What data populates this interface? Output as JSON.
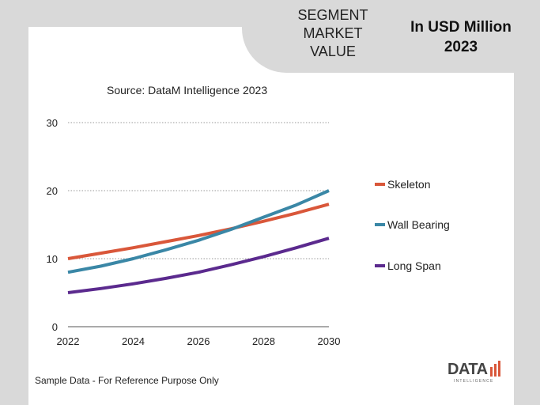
{
  "header": {
    "segment_title": "SEGMENT MARKET VALUE",
    "unit_title": "In USD Million 2023"
  },
  "source": "Source: DataM Intelligence  2023",
  "footnote": "Sample Data - For Reference Purpose Only",
  "logo": {
    "text": "DATA",
    "subtext": "INTELLIGENCE"
  },
  "colors": {
    "skeleton": "#d9573a",
    "wall_bearing": "#3a87a6",
    "long_span": "#5b2a8e",
    "grid": "#999999"
  },
  "chart_data": {
    "type": "line",
    "x": [
      2022,
      2023,
      2024,
      2025,
      2026,
      2027,
      2028,
      2029,
      2030
    ],
    "xticks": [
      2022,
      2024,
      2026,
      2028,
      2030
    ],
    "yticks": [
      0,
      10,
      20,
      30
    ],
    "ylim": [
      0,
      30
    ],
    "xlim": [
      2022,
      2030
    ],
    "grid": true,
    "legend_position": "right",
    "series": [
      {
        "name": "Skeleton",
        "color": "#d9573a",
        "values": [
          10,
          10.8,
          11.6,
          12.5,
          13.4,
          14.4,
          15.5,
          16.7,
          18
        ]
      },
      {
        "name": "Wall Bearing",
        "color": "#3a87a6",
        "values": [
          8,
          8.9,
          10,
          11.3,
          12.7,
          14.3,
          16.1,
          17.9,
          20
        ]
      },
      {
        "name": "Long Span",
        "color": "#5b2a8e",
        "values": [
          5,
          5.6,
          6.3,
          7.1,
          8.0,
          9.1,
          10.3,
          11.6,
          13
        ]
      }
    ]
  }
}
